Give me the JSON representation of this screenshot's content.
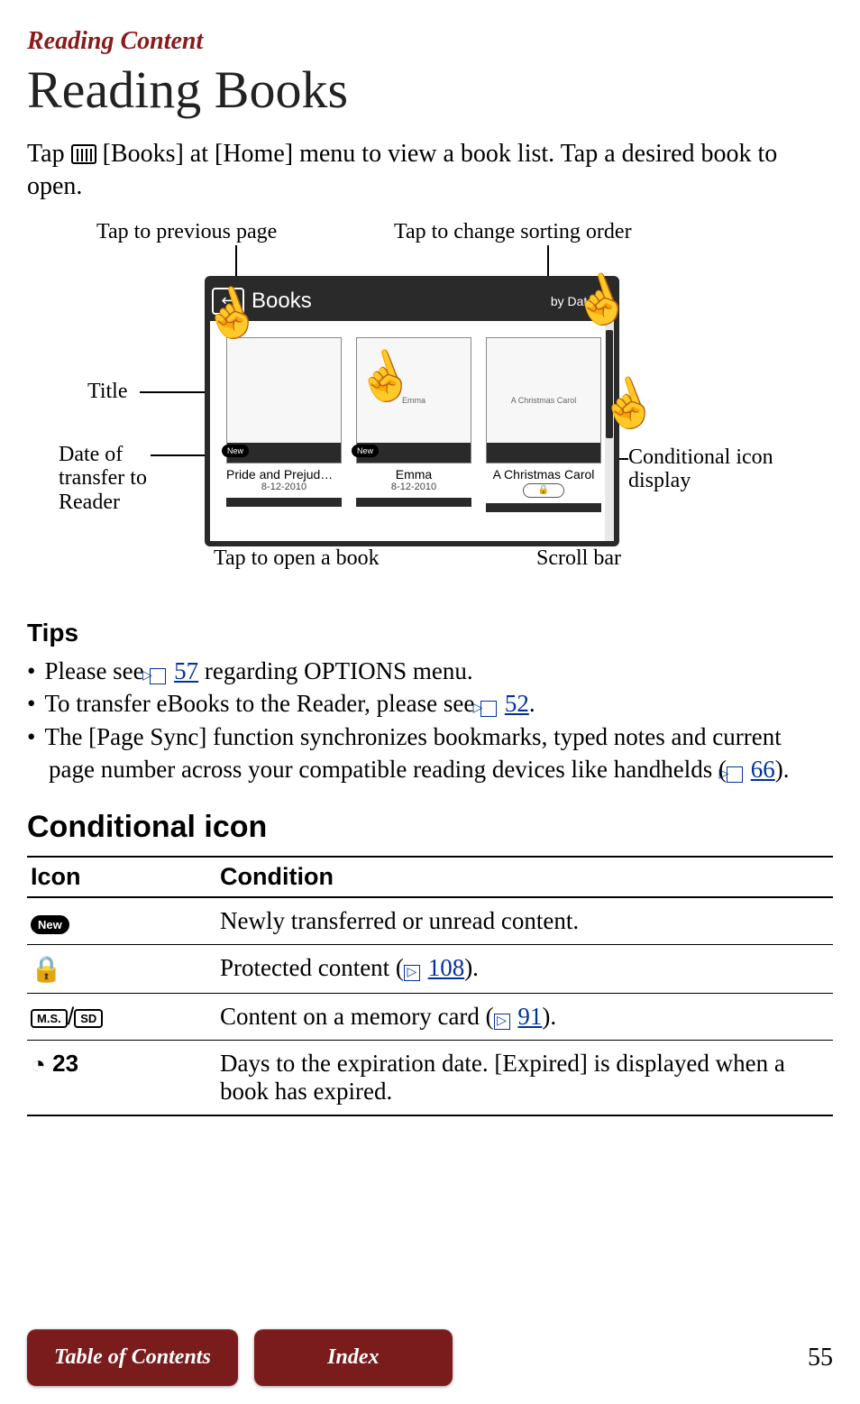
{
  "section_label": "Reading Content",
  "title": "Reading Books",
  "intro": {
    "pre": "Tap ",
    "mid": " [Books] at [Home] menu to view a book list. Tap a desired book to open."
  },
  "callouts": {
    "prev_page": "Tap to previous page",
    "sort": "Tap to change sorting order",
    "title_label": "Title",
    "date_label": "Date of transfer to Reader",
    "open_book": "Tap to open a book",
    "scrollbar": "Scroll bar",
    "cond_icon": "Conditional icon display"
  },
  "device": {
    "header_title": "Books",
    "sort_label": "by Date",
    "books": [
      {
        "cover_text": "",
        "title": "Pride and Prejud…",
        "date": "8-12-2010",
        "new": true,
        "lock": false
      },
      {
        "cover_text": "Emma",
        "title": "Emma",
        "date": "8-12-2010",
        "new": true,
        "lock": false
      },
      {
        "cover_text": "A Christmas Carol",
        "title": "A Christmas Carol",
        "date": "",
        "new": false,
        "lock": true
      }
    ]
  },
  "tips_heading": "Tips",
  "tips": [
    {
      "parts": [
        "Please see ",
        {
          "ref": "57"
        },
        " regarding OPTIONS menu."
      ]
    },
    {
      "parts": [
        "To transfer eBooks to the Reader, please see ",
        {
          "ref": "52"
        },
        "."
      ]
    },
    {
      "parts": [
        "The [Page Sync] function synchronizes bookmarks, typed notes and current page number across your compatible reading devices like handhelds (",
        {
          "ref": "66"
        },
        ")."
      ]
    }
  ],
  "cond_heading": "Conditional icon",
  "table": {
    "col_icon": "Icon",
    "col_cond": "Condition",
    "rows": [
      {
        "icon": "new",
        "cond": [
          "Newly transferred or unread content."
        ]
      },
      {
        "icon": "lock",
        "cond": [
          "Protected content (",
          {
            "ref": "108"
          },
          ")."
        ]
      },
      {
        "icon": "card",
        "cond": [
          "Content on a memory card (",
          {
            "ref": "91"
          },
          ")."
        ]
      },
      {
        "icon": "expire",
        "expire_n": "23",
        "cond": [
          "Days to the expiration date. [Expired] is displayed when a book has expired."
        ]
      }
    ],
    "card_labels": {
      "ms": "M.S.",
      "sd": "SD",
      "sep": "/"
    },
    "new_label": "New"
  },
  "footer": {
    "toc": "Table of Contents",
    "index": "Index",
    "page": "55"
  },
  "colors": {
    "brand": "#8b1a1a",
    "link": "#003399",
    "button_bg": "#7a1c1c"
  }
}
